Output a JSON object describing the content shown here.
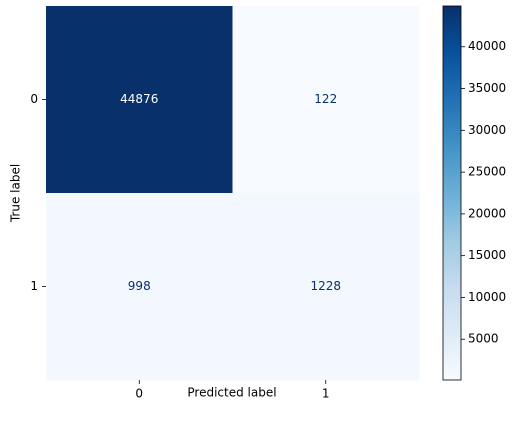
{
  "chart_data": {
    "type": "heatmap",
    "x_categories": [
      "0",
      "1"
    ],
    "y_categories": [
      "0",
      "1"
    ],
    "values": [
      [
        44876,
        122
      ],
      [
        998,
        1228
      ]
    ],
    "xlabel": "Predicted label",
    "ylabel": "True label",
    "colormap": "Blues",
    "colorbar": true,
    "clim": [
      122,
      44876
    ],
    "cticks": [
      5000,
      10000,
      15000,
      20000,
      25000,
      30000,
      35000,
      40000
    ]
  }
}
